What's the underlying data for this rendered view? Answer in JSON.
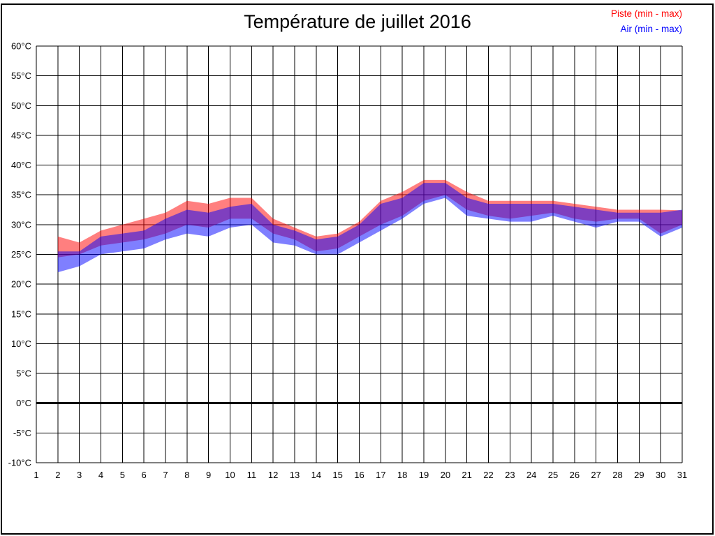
{
  "page": {
    "title": "Température de juillet 2016",
    "legend": [
      {
        "key": "piste",
        "label": "Piste (min - max)",
        "color": "#ff0000"
      },
      {
        "key": "air",
        "label": "Air (min - max)",
        "color": "#0000ff"
      }
    ]
  },
  "chart_data": {
    "type": "area",
    "title": "Température de juillet 2016",
    "xlabel": "",
    "ylabel": "",
    "x_unit": "jour",
    "y_unit": "°C",
    "xlim": [
      1,
      31
    ],
    "ylim": [
      -10,
      60
    ],
    "y_step": 5,
    "grid": true,
    "grid_color": "#000000",
    "zero_line_value": 0,
    "zero_line_width": 3,
    "legend_position": "top-right",
    "x_ticks": [
      1,
      2,
      3,
      4,
      5,
      6,
      7,
      8,
      9,
      10,
      11,
      12,
      13,
      14,
      15,
      16,
      17,
      18,
      19,
      20,
      21,
      22,
      23,
      24,
      25,
      26,
      27,
      28,
      29,
      30,
      31
    ],
    "y_ticks": [
      "-10°C",
      "-5°C",
      "0°C",
      "5°C",
      "10°C",
      "15°C",
      "20°C",
      "25°C",
      "30°C",
      "35°C",
      "40°C",
      "45°C",
      "50°C",
      "55°C",
      "60°C"
    ],
    "x_days": [
      2,
      3,
      4,
      5,
      6,
      7,
      8,
      9,
      10,
      11,
      12,
      13,
      14,
      15,
      16,
      17,
      18,
      19,
      20,
      21,
      22,
      23,
      24,
      25,
      26,
      27,
      28,
      29,
      30,
      31
    ],
    "series": [
      {
        "key": "piste",
        "name": "Piste (min - max)",
        "color": "#ff0000",
        "fill": "rgba(255,0,0,0.5)",
        "min": [
          24.5,
          25.0,
          26.5,
          27.0,
          27.5,
          28.5,
          30.0,
          29.5,
          31.0,
          31.0,
          28.5,
          27.5,
          25.5,
          26.0,
          28.0,
          30.0,
          31.5,
          34.0,
          35.0,
          32.5,
          31.5,
          31.0,
          31.5,
          32.0,
          31.0,
          30.5,
          31.0,
          31.0,
          28.5,
          30.0
        ],
        "max": [
          28.0,
          27.0,
          29.0,
          30.0,
          31.0,
          32.0,
          34.0,
          33.5,
          34.5,
          34.5,
          31.0,
          29.5,
          28.0,
          28.5,
          30.5,
          34.0,
          35.5,
          37.5,
          37.5,
          35.5,
          34.0,
          34.0,
          34.0,
          34.0,
          33.5,
          33.0,
          32.5,
          32.5,
          32.5,
          32.4
        ]
      },
      {
        "key": "air",
        "name": "Air (min - max)",
        "color": "#0000ff",
        "fill": "rgba(0,0,255,0.5)",
        "min": [
          22.0,
          23.0,
          25.0,
          25.5,
          26.0,
          27.5,
          28.5,
          28.0,
          29.5,
          30.0,
          27.0,
          26.5,
          25.0,
          25.0,
          27.0,
          29.0,
          31.0,
          33.5,
          34.5,
          31.5,
          31.0,
          30.5,
          30.5,
          31.5,
          30.5,
          29.5,
          30.5,
          30.5,
          28.0,
          29.5
        ],
        "max": [
          25.5,
          25.5,
          28.0,
          28.5,
          29.0,
          31.0,
          32.5,
          32.0,
          33.0,
          33.5,
          30.0,
          29.0,
          27.5,
          28.0,
          30.0,
          33.5,
          34.5,
          37.0,
          37.0,
          34.5,
          33.5,
          33.5,
          33.5,
          33.5,
          33.0,
          32.5,
          32.0,
          32.0,
          32.0,
          32.5
        ]
      }
    ]
  }
}
